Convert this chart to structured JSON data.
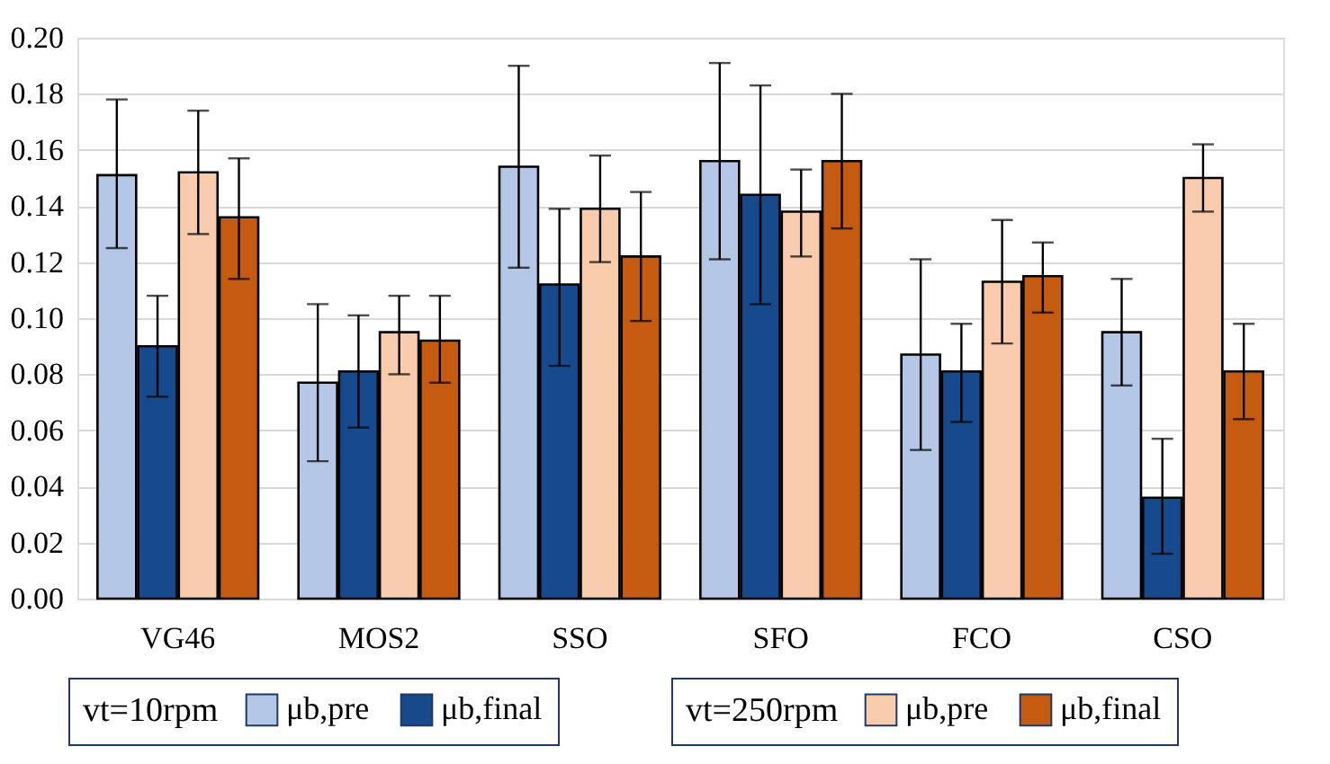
{
  "chart_data": {
    "type": "bar",
    "categories": [
      "VG46",
      "MOS2",
      "SSO",
      "SFO",
      "FCO",
      "CSO"
    ],
    "legend_title": [
      "vt=10rpm",
      "vt=250rpm"
    ],
    "series": [
      {
        "name": "μb,pre",
        "color": "#b4c7e7",
        "values": [
          0.151,
          0.077,
          0.154,
          0.156,
          0.087,
          0.095
        ],
        "errors": [
          [
            0.125,
            0.178
          ],
          [
            0.049,
            0.105
          ],
          [
            0.118,
            0.19
          ],
          [
            0.121,
            0.191
          ],
          [
            0.053,
            0.121
          ],
          [
            0.076,
            0.114
          ]
        ]
      },
      {
        "name": "μb,final",
        "color": "#174a8c",
        "values": [
          0.09,
          0.081,
          0.112,
          0.144,
          0.081,
          0.036
        ],
        "errors": [
          [
            0.072,
            0.108
          ],
          [
            0.061,
            0.101
          ],
          [
            0.083,
            0.139
          ],
          [
            0.105,
            0.183
          ],
          [
            0.063,
            0.098
          ],
          [
            0.016,
            0.057
          ]
        ]
      },
      {
        "name": "μb,pre",
        "color": "#f8cbad",
        "values": [
          0.152,
          0.095,
          0.139,
          0.138,
          0.113,
          0.15
        ],
        "errors": [
          [
            0.13,
            0.174
          ],
          [
            0.08,
            0.108
          ],
          [
            0.12,
            0.158
          ],
          [
            0.122,
            0.153
          ],
          [
            0.091,
            0.135
          ],
          [
            0.138,
            0.162
          ]
        ]
      },
      {
        "name": "μb,final",
        "color": "#c55a11",
        "values": [
          0.136,
          0.092,
          0.122,
          0.156,
          0.115,
          0.081
        ],
        "errors": [
          [
            0.114,
            0.157
          ],
          [
            0.077,
            0.108
          ],
          [
            0.099,
            0.145
          ],
          [
            0.132,
            0.18
          ],
          [
            0.102,
            0.127
          ],
          [
            0.064,
            0.098
          ]
        ]
      }
    ],
    "ylim": [
      0,
      0.2
    ],
    "yticks": [
      {
        "value": 0,
        "label": "0.00"
      },
      {
        "value": 0.02,
        "label": "0.02"
      },
      {
        "value": 0.04,
        "label": "0.04"
      },
      {
        "value": 0.06,
        "label": "0.06"
      },
      {
        "value": 0.08,
        "label": "0.08"
      },
      {
        "value": 0.1,
        "label": "0.10"
      },
      {
        "value": 0.12,
        "label": "0.12"
      },
      {
        "value": 0.14,
        "label": "0.14"
      },
      {
        "value": 0.16,
        "label": "0.16"
      },
      {
        "value": 0.18,
        "label": "0.18"
      },
      {
        "value": 0.2,
        "label": "0.20"
      }
    ],
    "grid": "y",
    "legend": "bottom"
  }
}
